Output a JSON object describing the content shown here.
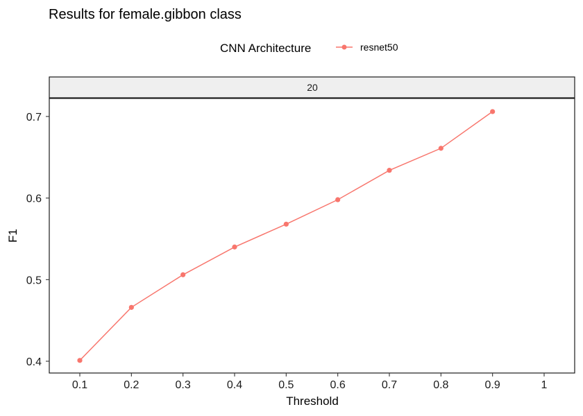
{
  "chart_data": {
    "type": "line",
    "title": "Results for female.gibbon class",
    "legend": {
      "title": "CNN Architecture",
      "position": "top",
      "entries": [
        "resnet50"
      ]
    },
    "facet_label": "20",
    "xlabel": "Threshold",
    "ylabel": "F1",
    "x_ticks": [
      "0.1",
      "0.2",
      "0.3",
      "0.4",
      "0.5",
      "0.6",
      "0.7",
      "0.8",
      "0.9",
      "1"
    ],
    "y_ticks": [
      "0.4",
      "0.5",
      "0.6",
      "0.7"
    ],
    "xlim": [
      0.1,
      1.0
    ],
    "ylim": [
      0.4,
      0.7
    ],
    "grid": false,
    "series": [
      {
        "name": "resnet50",
        "color": "#F8766D",
        "x": [
          0.1,
          0.2,
          0.3,
          0.4,
          0.5,
          0.6,
          0.7,
          0.8,
          0.9
        ],
        "y": [
          0.401,
          0.466,
          0.506,
          0.54,
          0.568,
          0.598,
          0.634,
          0.661,
          0.706
        ]
      }
    ]
  }
}
